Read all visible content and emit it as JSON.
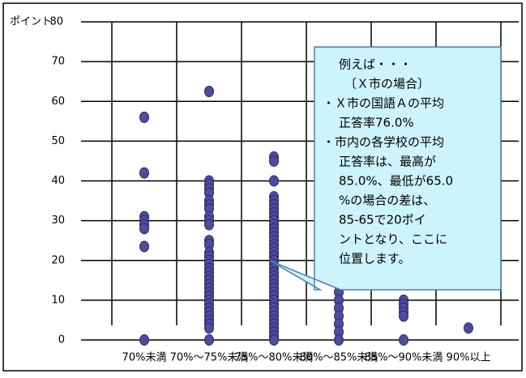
{
  "chart_data": {
    "type": "dotplot",
    "y_label": "ポイント",
    "categories": [
      "70%未満",
      "70%～75%未満",
      "75%～80%未満",
      "80%～85%未満",
      "85%～90%未満",
      "90%以上"
    ],
    "values": [
      [
        56,
        42,
        31,
        30,
        29,
        28,
        23.5,
        0
      ],
      [
        62.5,
        40,
        39,
        38,
        37,
        35,
        34,
        33,
        31,
        30,
        29,
        25,
        24,
        22,
        21,
        20,
        19,
        18,
        17,
        16,
        15,
        14,
        13,
        12,
        11,
        10,
        9,
        8,
        7,
        6,
        5,
        4,
        3,
        0
      ],
      [
        46,
        45,
        40,
        36,
        35,
        34,
        33,
        32,
        31,
        30,
        29,
        28,
        27,
        26,
        25,
        24,
        23,
        22,
        21,
        20,
        19,
        18,
        17,
        16,
        15,
        14,
        13,
        12,
        11,
        10,
        9,
        8,
        7,
        6,
        5,
        4,
        3,
        2,
        1,
        0
      ],
      [
        16,
        14,
        12,
        10,
        8,
        6,
        4,
        2,
        0
      ],
      [
        10,
        9,
        8,
        7,
        6,
        0
      ],
      [
        3
      ]
    ],
    "color": "#4d4d9e",
    "ylim": [
      0,
      80
    ],
    "yticks": [
      0,
      10,
      20,
      30,
      40,
      50,
      60,
      70,
      80
    ],
    "grid": true,
    "annotation": [
      "例えば・・・",
      "〔Ｘ市の場合〕",
      "・Ｘ市の国語Ａの平均",
      "正答率76.0%",
      "・市内の各学校の平均",
      "正答率は、最高が",
      "85.0%、最低が65.0",
      "%の場合の差は、",
      "85-65で20ポイ",
      "ントとなり、ここに",
      "位置します。"
    ]
  }
}
